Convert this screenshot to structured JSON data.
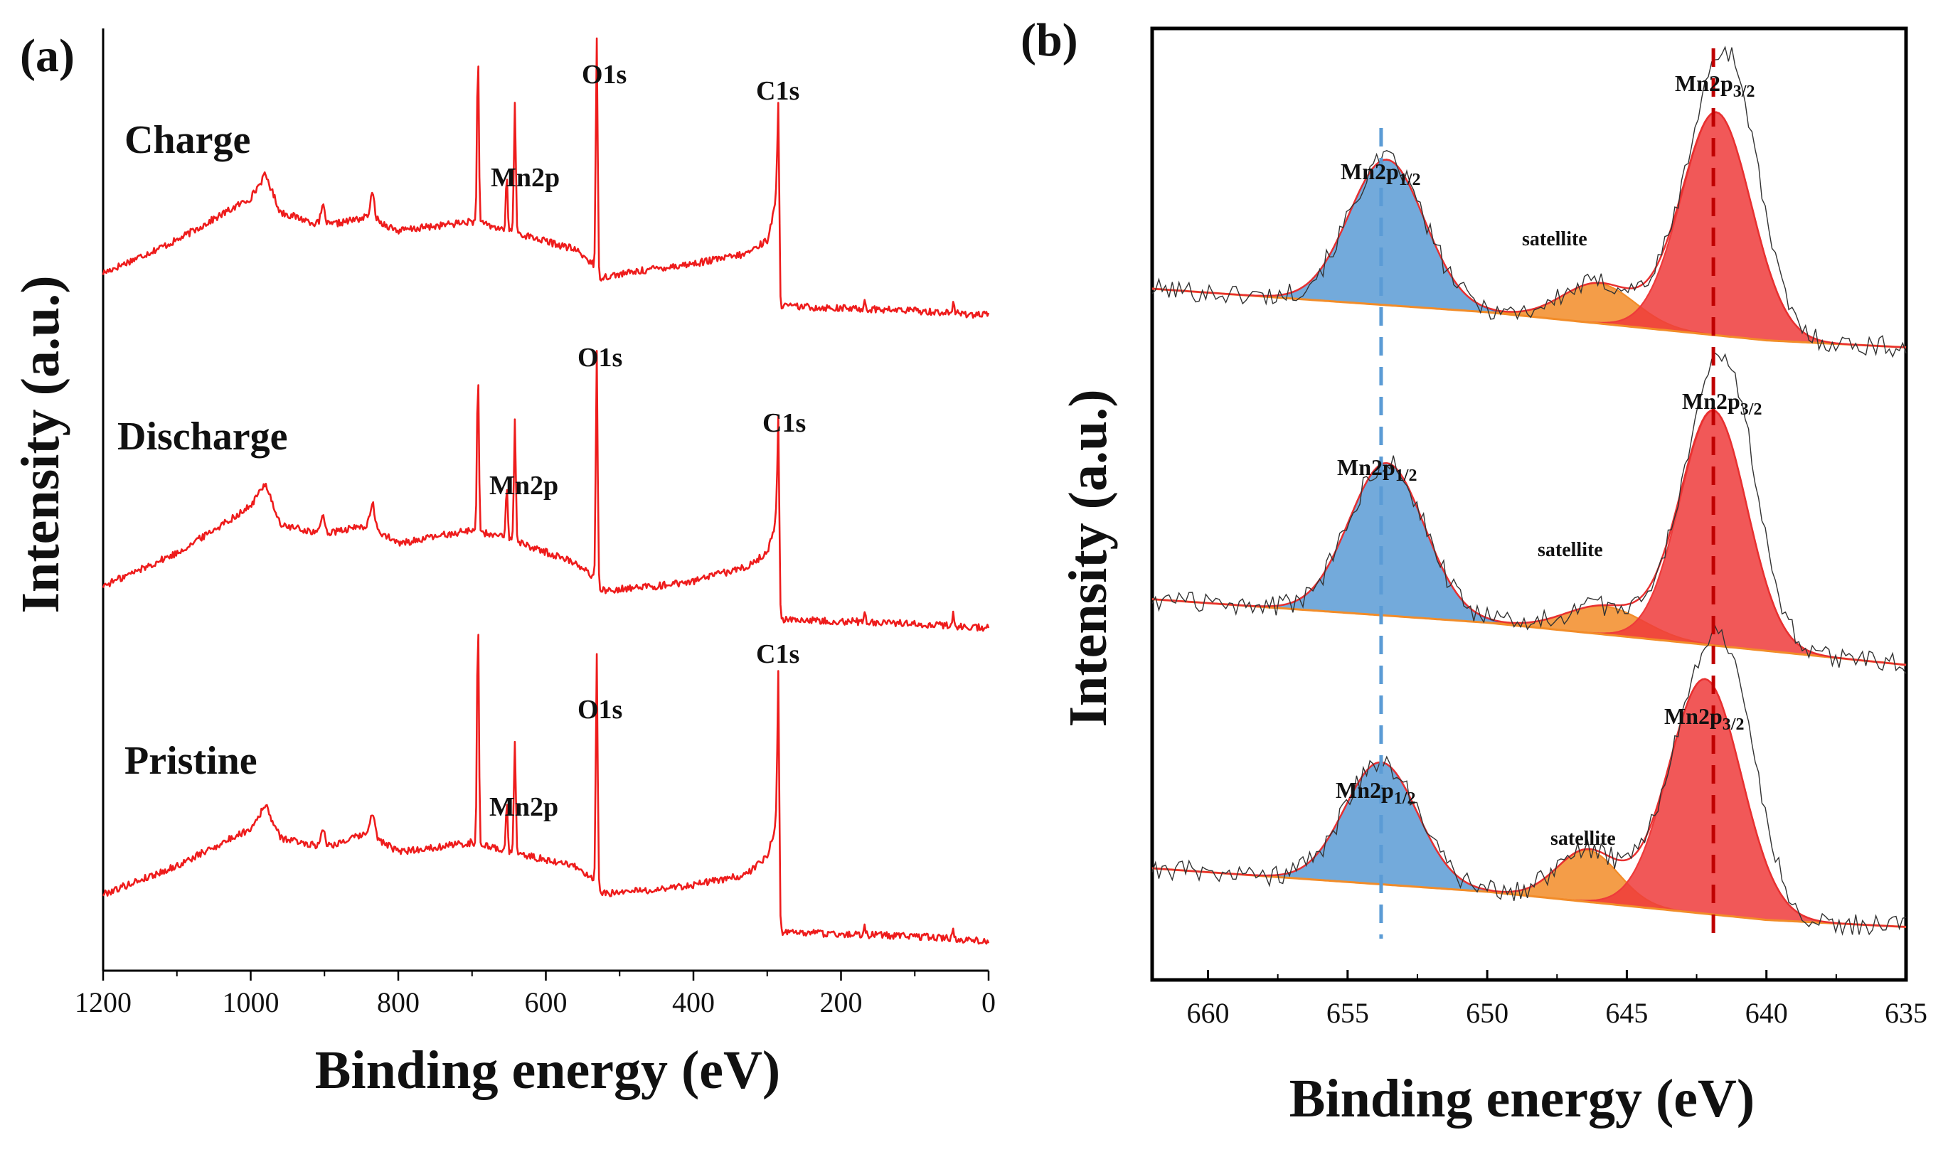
{
  "chart_data": [
    {
      "panel": "(a)",
      "type": "line",
      "xlabel": "Binding energy (eV)",
      "ylabel": "Intensity (a.u.)",
      "xlim": [
        1200,
        0
      ],
      "xticks": [
        1200,
        1000,
        800,
        600,
        400,
        200,
        0
      ],
      "series": [
        {
          "name": "Charge",
          "color": "#ee1c1c",
          "baseline": [
            [
              1200,
              0.2
            ],
            [
              1100,
              0.34
            ],
            [
              1000,
              0.52
            ],
            [
              980,
              0.62
            ],
            [
              960,
              0.46
            ],
            [
              900,
              0.4
            ],
            [
              840,
              0.44
            ],
            [
              800,
              0.38
            ],
            [
              700,
              0.42
            ],
            [
              650,
              0.38
            ],
            [
              560,
              0.3
            ],
            [
              536,
              0.24
            ],
            [
              530,
              0.18
            ],
            [
              450,
              0.22
            ],
            [
              400,
              0.24
            ],
            [
              330,
              0.28
            ],
            [
              300,
              0.34
            ],
            [
              288,
              0.5
            ],
            [
              285,
              0.06
            ],
            [
              200,
              0.05
            ],
            [
              100,
              0.04
            ],
            [
              0,
              0.02
            ]
          ],
          "peaks": [
            {
              "label": "Mn2p",
              "x": 642,
              "height": 0.55,
              "x2": 653,
              "height2": 0.22
            },
            {
              "label": "O1s",
              "x": 531,
              "height": 1.0
            },
            {
              "label": "C1s",
              "x": 285,
              "height": 0.88
            },
            {
              "x": 692,
              "height": 0.72
            }
          ]
        },
        {
          "name": "Discharge",
          "color": "#ee1c1c",
          "baseline": [
            [
              1200,
              0.2
            ],
            [
              1100,
              0.34
            ],
            [
              1000,
              0.54
            ],
            [
              980,
              0.64
            ],
            [
              960,
              0.46
            ],
            [
              900,
              0.42
            ],
            [
              840,
              0.46
            ],
            [
              800,
              0.38
            ],
            [
              700,
              0.44
            ],
            [
              650,
              0.4
            ],
            [
              560,
              0.3
            ],
            [
              536,
              0.24
            ],
            [
              530,
              0.18
            ],
            [
              450,
              0.2
            ],
            [
              400,
              0.22
            ],
            [
              330,
              0.28
            ],
            [
              300,
              0.34
            ],
            [
              288,
              0.48
            ],
            [
              285,
              0.06
            ],
            [
              200,
              0.05
            ],
            [
              100,
              0.04
            ],
            [
              0,
              0.02
            ]
          ],
          "peaks": [
            {
              "label": "Mn2p",
              "x": 642,
              "height": 0.52,
              "x2": 653,
              "height2": 0.22
            },
            {
              "label": "O1s",
              "x": 531,
              "height": 1.0
            },
            {
              "label": "C1s",
              "x": 285,
              "height": 0.85
            },
            {
              "x": 692,
              "height": 0.68
            }
          ]
        },
        {
          "name": "Pristine",
          "color": "#ee1c1c",
          "baseline": [
            [
              1200,
              0.22
            ],
            [
              1100,
              0.34
            ],
            [
              1000,
              0.5
            ],
            [
              980,
              0.6
            ],
            [
              960,
              0.46
            ],
            [
              900,
              0.42
            ],
            [
              840,
              0.48
            ],
            [
              800,
              0.4
            ],
            [
              700,
              0.44
            ],
            [
              650,
              0.4
            ],
            [
              560,
              0.34
            ],
            [
              536,
              0.28
            ],
            [
              530,
              0.22
            ],
            [
              450,
              0.24
            ],
            [
              400,
              0.26
            ],
            [
              330,
              0.3
            ],
            [
              300,
              0.38
            ],
            [
              288,
              0.52
            ],
            [
              285,
              0.06
            ],
            [
              200,
              0.05
            ],
            [
              100,
              0.04
            ],
            [
              0,
              0.02
            ]
          ],
          "peaks": [
            {
              "label": "Mn2p",
              "x": 642,
              "height": 0.48,
              "x2": 653,
              "height2": 0.22
            },
            {
              "label": "O1s",
              "x": 531,
              "height": 1.0
            },
            {
              "label": "C1s",
              "x": 285,
              "height": 1.1
            },
            {
              "x": 692,
              "height": 0.98
            }
          ]
        }
      ]
    },
    {
      "panel": "(b)",
      "type": "area",
      "xlabel": "Binding energy (eV)",
      "ylabel": "Intensity (a.u.)",
      "xlim": [
        662,
        635
      ],
      "xticks": [
        660,
        655,
        650,
        645,
        640,
        635
      ],
      "reference_lines": [
        {
          "label": "Mn2p1/2",
          "x": 653.8,
          "color": "#5b9bd5"
        },
        {
          "label": "Mn2p3/2",
          "x": 641.9,
          "color": "#c00000"
        }
      ],
      "series": [
        {
          "name": "Charge",
          "background": [
            [
              662,
              0.3
            ],
            [
              650,
              0.2
            ],
            [
              640,
              0.08
            ],
            [
              635,
              0.05
            ]
          ],
          "components": [
            {
              "label": "Mn2p1/2",
              "center": 653.6,
              "amp": 0.62,
              "sigma": 1.35,
              "color": "#5b9bd5"
            },
            {
              "label": "satellite",
              "center": 646.0,
              "amp": 0.17,
              "sigma": 1.3,
              "color": "#f28c28"
            },
            {
              "label": "Mn2p3/2",
              "center": 641.8,
              "amp": 0.95,
              "sigma": 1.25,
              "color": "#ee3b3b"
            }
          ]
        },
        {
          "name": "Discharge",
          "background": [
            [
              662,
              0.28
            ],
            [
              650,
              0.18
            ],
            [
              640,
              0.06
            ],
            [
              635,
              0.0
            ]
          ],
          "components": [
            {
              "label": "Mn2p1/2",
              "center": 653.6,
              "amp": 0.65,
              "sigma": 1.35,
              "color": "#5b9bd5"
            },
            {
              "label": "satellite",
              "center": 645.8,
              "amp": 0.12,
              "sigma": 1.4,
              "color": "#f28c28"
            },
            {
              "label": "Mn2p3/2",
              "center": 641.9,
              "amp": 1.0,
              "sigma": 1.2,
              "color": "#ee3b3b"
            }
          ]
        },
        {
          "name": "Pristine",
          "background": [
            [
              662,
              0.3
            ],
            [
              650,
              0.2
            ],
            [
              640,
              0.08
            ],
            [
              635,
              0.05
            ]
          ],
          "components": [
            {
              "label": "Mn2p1/2",
              "center": 653.8,
              "amp": 0.52,
              "sigma": 1.3,
              "color": "#5b9bd5"
            },
            {
              "label": "satellite",
              "center": 646.4,
              "amp": 0.22,
              "sigma": 1.1,
              "color": "#f28c28"
            },
            {
              "label": "Mn2p3/2",
              "center": 642.2,
              "amp": 1.0,
              "sigma": 1.3,
              "color": "#ee3b3b"
            }
          ]
        }
      ]
    }
  ]
}
